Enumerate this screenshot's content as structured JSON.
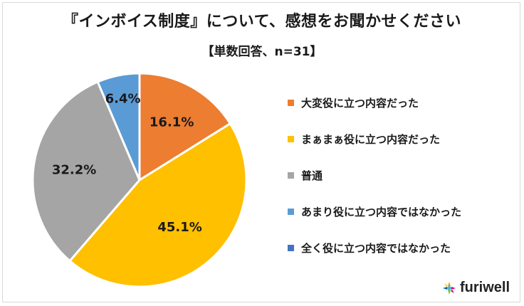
{
  "title": "『インボイス制度』について、感想をお聞かせください",
  "subtitle": "【単数回答、n=31】",
  "brand": {
    "name": "furiwell"
  },
  "chart_data": {
    "type": "pie",
    "title": "『インボイス制度』について、感想をお聞かせください",
    "subtitle": "【単数回答、n=31】",
    "unit": "%",
    "start_angle": "12 o'clock, clockwise",
    "legend_position": "right",
    "slices": [
      {
        "label": "大変役に立つ内容だった",
        "value": 16.1,
        "display": "16.1%",
        "color": "#ED7D31"
      },
      {
        "label": "まぁまぁ役に立つ内容だった",
        "value": 45.1,
        "display": "45.1%",
        "color": "#FFC000"
      },
      {
        "label": "普通",
        "value": 32.2,
        "display": "32.2%",
        "color": "#A5A5A5"
      },
      {
        "label": "あまり役に立つ内容ではなかった",
        "value": 6.4,
        "display": "6.4%",
        "color": "#5B9BD5"
      },
      {
        "label": "全く役に立つ内容ではなかった",
        "value": 0,
        "display": "",
        "color": "#4472C4"
      }
    ]
  }
}
